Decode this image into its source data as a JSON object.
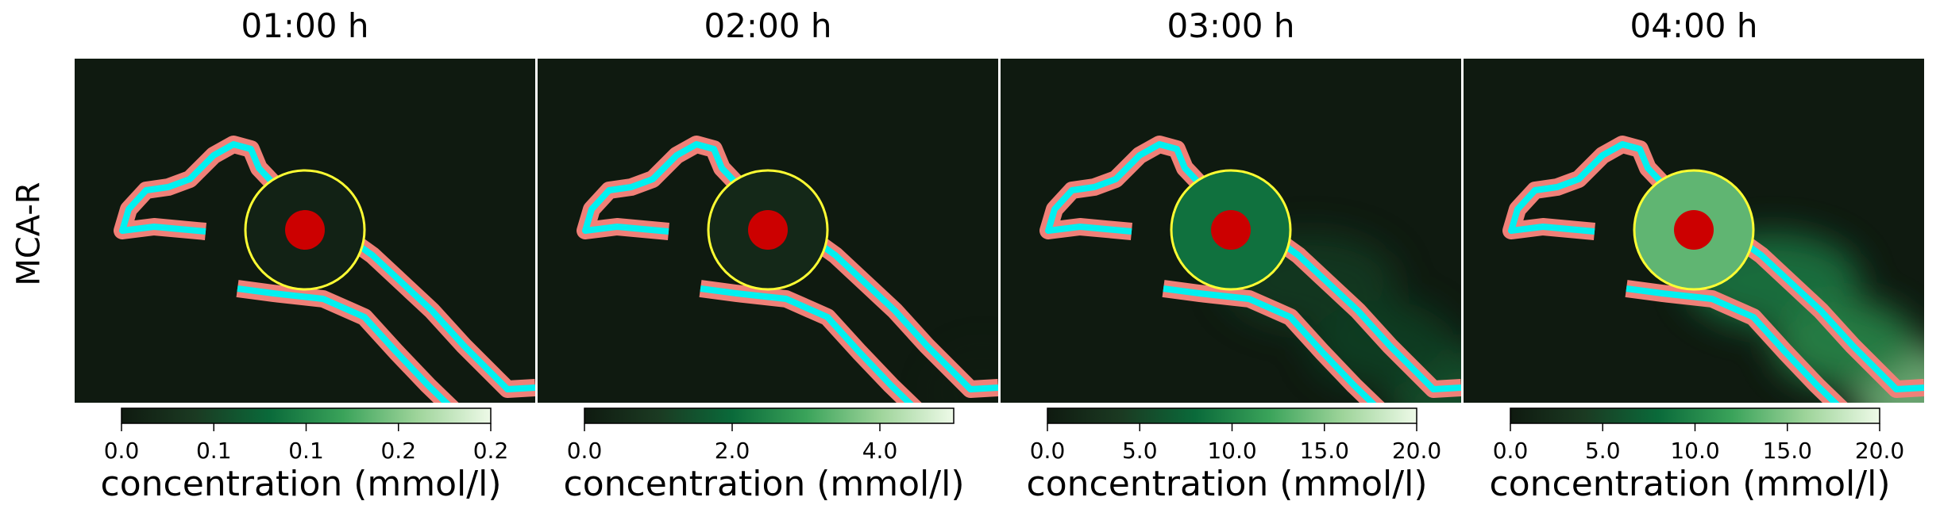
{
  "row_label": "MCA-R",
  "colormap": [
    "#0f1a10",
    "#1b3a22",
    "#0a6a3a",
    "#3aa35a",
    "#9ed49a",
    "#eefae8"
  ],
  "colors": {
    "background": "#0f1a10",
    "outer_boundary": "#f08078",
    "inner_boundary": "#00f0f0",
    "marker": "#cc0000",
    "circle_outline": "#ffff33"
  },
  "chart_data": [
    {
      "type": "heatmap",
      "title": "01:00 h",
      "colorbar": {
        "range": [
          0,
          0.2
        ],
        "ticks": [
          "0.0",
          "0.1",
          "0.1",
          "0.2",
          "0.2"
        ],
        "tick_values": [
          0,
          0.05,
          0.1,
          0.15,
          0.2
        ],
        "label": "concentration (mmol/l)"
      },
      "circle_value": 0.01
    },
    {
      "type": "heatmap",
      "title": "02:00 h",
      "colorbar": {
        "range": [
          0,
          5
        ],
        "ticks": [
          "0.0",
          "2.0",
          "4.0"
        ],
        "tick_values": [
          0,
          2,
          4
        ],
        "label": "concentration (mmol/l)"
      },
      "circle_value": 0.45
    },
    {
      "type": "heatmap",
      "title": "03:00 h",
      "colorbar": {
        "range": [
          0,
          20
        ],
        "ticks": [
          "0.0",
          "5.0",
          "10.0",
          "15.0",
          "20.0"
        ],
        "tick_values": [
          0,
          5,
          10,
          15,
          20
        ],
        "label": "concentration (mmol/l)"
      },
      "circle_value": 8.5
    },
    {
      "type": "heatmap",
      "title": "04:00 h",
      "colorbar": {
        "range": [
          0,
          20
        ],
        "ticks": [
          "0.0",
          "5.0",
          "10.0",
          "15.0",
          "20.0"
        ],
        "tick_values": [
          0,
          5,
          10,
          15,
          20
        ],
        "label": "concentration (mmol/l)"
      },
      "circle_value": 13.5
    }
  ]
}
